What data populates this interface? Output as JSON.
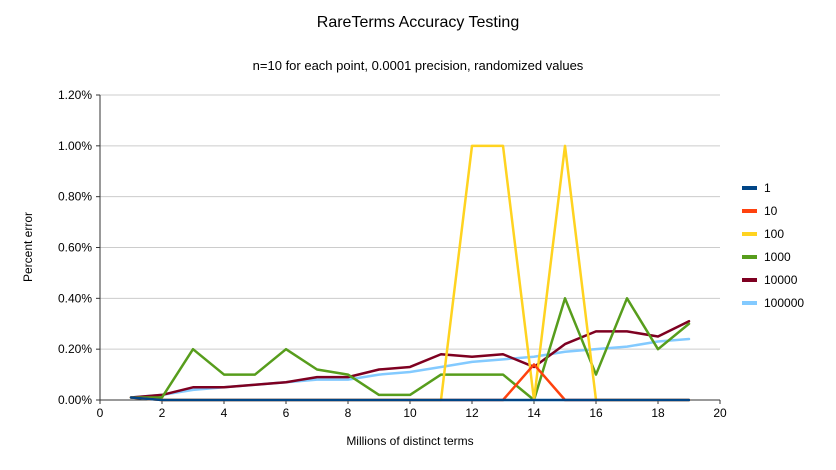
{
  "chart_data": {
    "type": "line",
    "title": "RareTerms Accuracy Testing",
    "subtitle": "n=10 for each point, 0.0001 precision, randomized values",
    "xlabel": "Millions of distinct terms",
    "ylabel": "Percent error",
    "xlim": [
      0,
      20
    ],
    "ylim": [
      0,
      1.2
    ],
    "xticks": [
      0,
      2,
      4,
      6,
      8,
      10,
      12,
      14,
      16,
      18,
      20
    ],
    "xtick_labels": [
      "0",
      "2",
      "4",
      "6",
      "8",
      "10",
      "12",
      "14",
      "16",
      "18",
      "20"
    ],
    "yticks": [
      0,
      0.2,
      0.4,
      0.6,
      0.8,
      1.0,
      1.2
    ],
    "ytick_labels": [
      "0.00%",
      "0.20%",
      "0.40%",
      "0.60%",
      "0.80%",
      "1.00%",
      "1.20%"
    ],
    "grid": "horizontal",
    "legend_position": "right",
    "colors": {
      "grid_line": "#cccccc",
      "axis_line": "#333333",
      "text": "#000000",
      "background": "#ffffff"
    },
    "x": [
      1,
      2,
      3,
      4,
      5,
      6,
      7,
      8,
      9,
      10,
      11,
      12,
      13,
      14,
      15,
      16,
      17,
      18,
      19
    ],
    "series": [
      {
        "name": "1",
        "color": "#004586",
        "values": [
          0.01,
          0,
          0,
          0,
          0,
          0,
          0,
          0,
          0,
          0,
          0,
          0,
          0,
          0,
          0,
          0,
          0,
          0,
          0
        ]
      },
      {
        "name": "10",
        "color": "#ff420e",
        "values": [
          0.01,
          0,
          0,
          0,
          0,
          0,
          0,
          0,
          0,
          0,
          0,
          0,
          0,
          0.14,
          0,
          0,
          0,
          0,
          0
        ]
      },
      {
        "name": "100",
        "color": "#ffd320",
        "values": [
          0.01,
          0,
          0,
          0,
          0,
          0,
          0,
          0,
          0,
          0,
          0,
          1.0,
          1.0,
          0,
          1.0,
          0,
          0,
          0,
          0
        ]
      },
      {
        "name": "1000",
        "color": "#579d1c",
        "values": [
          0.01,
          0.01,
          0.2,
          0.1,
          0.1,
          0.2,
          0.12,
          0.1,
          0.02,
          0.02,
          0.1,
          0.1,
          0.1,
          0,
          0.4,
          0.1,
          0.4,
          0.2,
          0.3
        ]
      },
      {
        "name": "10000",
        "color": "#7e0021",
        "values": [
          0.01,
          0.02,
          0.05,
          0.05,
          0.06,
          0.07,
          0.09,
          0.09,
          0.12,
          0.13,
          0.18,
          0.17,
          0.18,
          0.13,
          0.22,
          0.27,
          0.27,
          0.25,
          0.31
        ]
      },
      {
        "name": "100000",
        "color": "#83caff",
        "values": [
          0.01,
          0.02,
          0.04,
          0.05,
          0.06,
          0.07,
          0.08,
          0.08,
          0.1,
          0.11,
          0.13,
          0.15,
          0.16,
          0.17,
          0.19,
          0.2,
          0.21,
          0.23,
          0.24
        ]
      }
    ]
  }
}
